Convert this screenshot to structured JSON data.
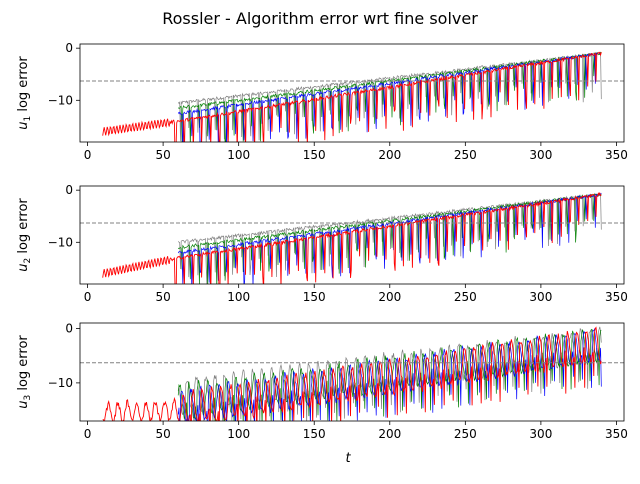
{
  "figure": {
    "title": "Rossler - Algorithm error wrt fine solver",
    "xlabel": "t"
  },
  "chart_data": [
    {
      "type": "line",
      "ylabel_var": "u",
      "ylabel_sub": "1",
      "ylabel_rest": " log error",
      "xlim": [
        -5,
        355
      ],
      "ylim": [
        -18.0,
        0.8
      ],
      "xticks": [
        0,
        50,
        100,
        150,
        200,
        250,
        300,
        350
      ],
      "yticks": [
        0,
        -10
      ],
      "threshold": -6.3,
      "series": [
        {
          "color": "#ff0000",
          "x": [
            10,
            60,
            340
          ],
          "y": [
            -16.0,
            -14.0,
            -1.0
          ]
        },
        {
          "color": "#0000ff",
          "x": [
            60,
            340
          ],
          "y": [
            -12.5,
            -1.0
          ]
        },
        {
          "color": "#008000",
          "x": [
            60,
            340
          ],
          "y": [
            -11.5,
            -1.0
          ]
        },
        {
          "color": "#808080",
          "x": [
            60,
            340
          ],
          "y": [
            -10.5,
            -1.0
          ]
        }
      ]
    },
    {
      "type": "line",
      "ylabel_var": "u",
      "ylabel_sub": "2",
      "ylabel_rest": " log error",
      "xlim": [
        -5,
        355
      ],
      "ylim": [
        -18.0,
        0.8
      ],
      "xticks": [
        0,
        50,
        100,
        150,
        200,
        250,
        300,
        350
      ],
      "yticks": [
        0,
        -10
      ],
      "threshold": -6.3,
      "series": [
        {
          "color": "#ff0000",
          "x": [
            10,
            60,
            340
          ],
          "y": [
            -16.0,
            -13.0,
            -0.8
          ]
        },
        {
          "color": "#0000ff",
          "x": [
            60,
            340
          ],
          "y": [
            -12.0,
            -0.8
          ]
        },
        {
          "color": "#008000",
          "x": [
            60,
            340
          ],
          "y": [
            -11.0,
            -0.8
          ]
        },
        {
          "color": "#808080",
          "x": [
            60,
            340
          ],
          "y": [
            -10.0,
            -0.8
          ]
        }
      ]
    },
    {
      "type": "line",
      "ylabel_var": "u",
      "ylabel_sub": "3",
      "ylabel_rest": " log error",
      "xlim": [
        -5,
        355
      ],
      "ylim": [
        -17.0,
        1.0
      ],
      "xticks": [
        0,
        50,
        100,
        150,
        200,
        250,
        300,
        350
      ],
      "yticks": [
        0,
        -10
      ],
      "threshold": -6.3,
      "series": [
        {
          "color": "#ff0000",
          "x": [
            10,
            60,
            340
          ],
          "y": [
            -15.5,
            -15.0,
            -3.0
          ]
        },
        {
          "color": "#0000ff",
          "x": [
            60,
            340
          ],
          "y": [
            -14.5,
            -3.0
          ]
        },
        {
          "color": "#008000",
          "x": [
            60,
            340
          ],
          "y": [
            -13.5,
            -3.0
          ]
        },
        {
          "color": "#808080",
          "x": [
            60,
            340
          ],
          "y": [
            -12.5,
            -3.0
          ]
        }
      ]
    }
  ]
}
